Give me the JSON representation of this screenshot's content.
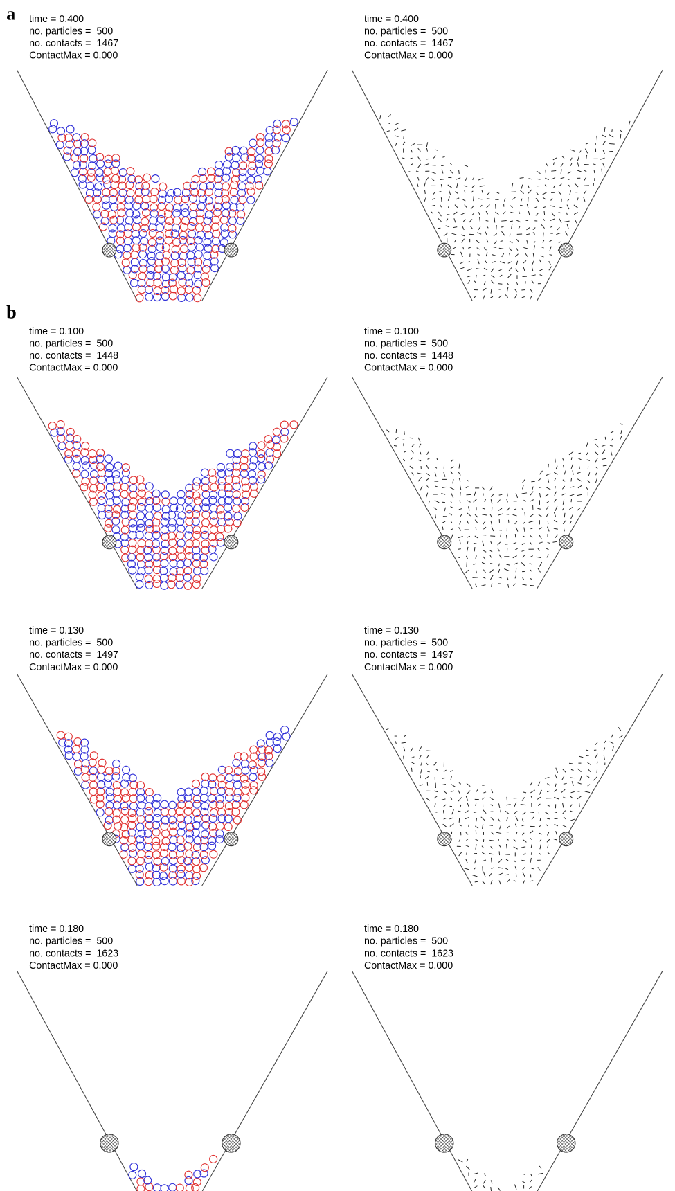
{
  "panel_labels": [
    "a",
    "b"
  ],
  "rows": [
    {
      "left": [
        "time = 0.400",
        "no. particles =  500",
        "no. contacts =  1467",
        "ContactMax = 0.000"
      ],
      "right": [
        "time = 0.400",
        "no. particles =  500",
        "no. contacts =  1467",
        "ContactMax = 0.000"
      ]
    },
    {
      "left": [
        "time = 0.100",
        "no. particles =  500",
        "no. contacts =  1448",
        "ContactMax = 0.000"
      ],
      "right": [
        "time = 0.100",
        "no. particles =  500",
        "no. contacts =  1448",
        "ContactMax = 0.000"
      ]
    },
    {
      "left": [
        "time = 0.130",
        "no. particles =  500",
        "no. contacts =  1497",
        "ContactMax = 0.000"
      ],
      "right": [
        "time = 0.130",
        "no. particles =  500",
        "no. contacts =  1497",
        "ContactMax = 0.000"
      ]
    },
    {
      "left": [
        "time = 0.180",
        "no. particles =  500",
        "no. contacts =  1623",
        "ContactMax = 0.000"
      ],
      "right": [
        "time = 0.180",
        "no. particles =  500",
        "no. contacts =  1623",
        "ContactMax = 0.000"
      ]
    }
  ]
}
